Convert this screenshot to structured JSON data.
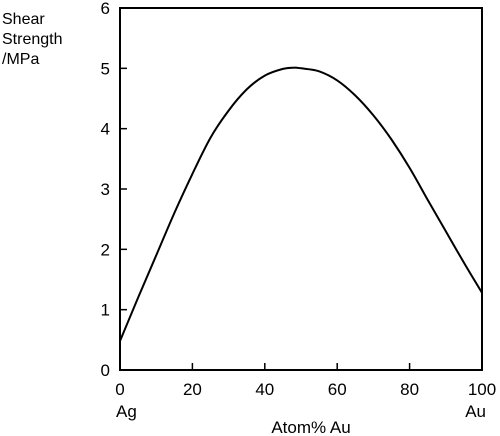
{
  "chart_data": {
    "type": "line",
    "ylabel_lines": [
      "Shear",
      "Strength",
      "/MPa"
    ],
    "xlabel": "Atom% Au",
    "x_end_labels": {
      "left": "Ag",
      "right": "Au"
    },
    "xlim": [
      0,
      100
    ],
    "ylim": [
      0,
      6
    ],
    "x_ticks": [
      0,
      20,
      40,
      60,
      80,
      100
    ],
    "y_ticks": [
      0,
      1,
      2,
      3,
      4,
      5,
      6
    ],
    "grid": false,
    "series": [
      {
        "x": [
          0,
          5,
          10,
          15,
          20,
          25,
          30,
          35,
          40,
          45,
          48,
          50,
          55,
          60,
          65,
          70,
          75,
          80,
          85,
          90,
          95,
          100
        ],
        "y": [
          0.48,
          1.2,
          1.9,
          2.6,
          3.25,
          3.85,
          4.3,
          4.65,
          4.88,
          4.99,
          5.01,
          5.0,
          4.95,
          4.8,
          4.55,
          4.22,
          3.82,
          3.35,
          2.82,
          2.3,
          1.78,
          1.28
        ]
      }
    ]
  }
}
